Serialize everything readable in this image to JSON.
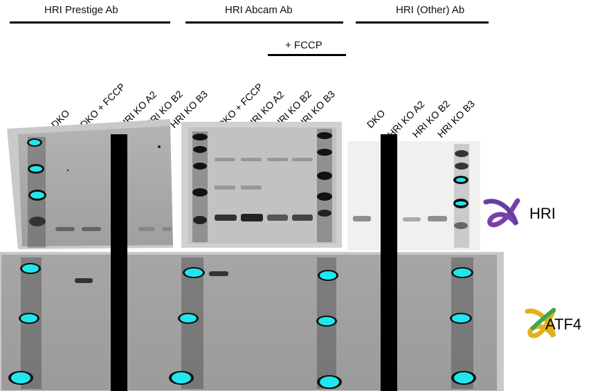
{
  "antibody_headers": {
    "prestige": "HRI Prestige Ab",
    "abcam": "HRI Abcam Ab",
    "other": "HRI (Other) Ab"
  },
  "treatment_label": "+ FCCP",
  "lanes": {
    "group1": [
      "DKO",
      "DKO + FCCP",
      "HRI KO A2",
      "HRI KO B2",
      "HRI KO B3"
    ],
    "group2": [
      "DKO + FCCP",
      "HRI KO A2",
      "HRI KO B2",
      "HRI KO B3"
    ],
    "group3": [
      "DKO",
      "HRI KO A2",
      "HRI KO B2",
      "HRI KO B3"
    ]
  },
  "proteins": {
    "hri": "HRI",
    "atf4": "ATF4"
  },
  "colors": {
    "ladder": "#22e6ee",
    "blot_grey": "#a7a7a7",
    "hri_icon": "#7a3fa8",
    "atf4_icon": "#3aa850"
  },
  "icons": {
    "hri": "ribbon-protein-icon",
    "atf4": "ribbon-protein-icon"
  }
}
